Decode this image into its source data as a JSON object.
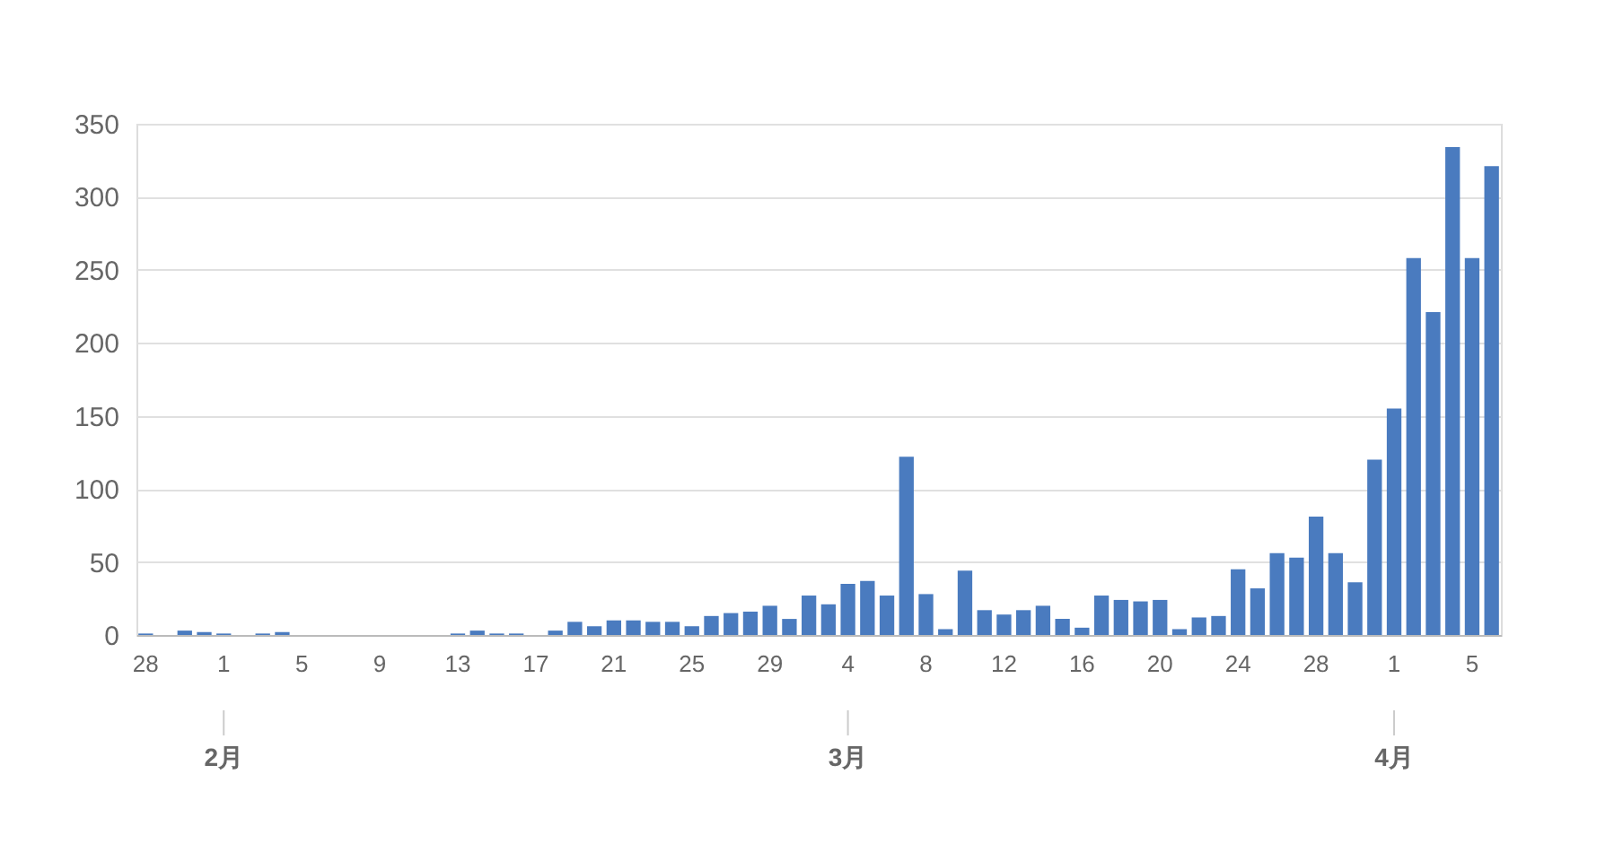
{
  "chart_data": {
    "type": "bar",
    "color": "#4a7bbf",
    "categories": [
      "28",
      null,
      null,
      null,
      "1",
      null,
      null,
      null,
      "5",
      null,
      null,
      null,
      "9",
      null,
      null,
      null,
      "13",
      null,
      null,
      null,
      "17",
      null,
      null,
      null,
      "21",
      null,
      null,
      null,
      "25",
      null,
      null,
      null,
      "29",
      null,
      null,
      null,
      "4",
      null,
      null,
      null,
      "8",
      null,
      null,
      null,
      "12",
      null,
      null,
      null,
      "16",
      null,
      null,
      null,
      "20",
      null,
      null,
      null,
      "24",
      null,
      null,
      null,
      "28",
      null,
      null,
      null,
      "1",
      null,
      null,
      null,
      "5",
      null
    ],
    "values": [
      1,
      0,
      3,
      2,
      1,
      0,
      1,
      2,
      0,
      0,
      0,
      0,
      0,
      0,
      0,
      0,
      1,
      3,
      1,
      1,
      0,
      3,
      9,
      6,
      10,
      10,
      9,
      9,
      6,
      13,
      15,
      16,
      20,
      11,
      27,
      21,
      35,
      37,
      27,
      122,
      28,
      4,
      44,
      17,
      14,
      17,
      20,
      11,
      5,
      27,
      24,
      23,
      24,
      4,
      12,
      13,
      45,
      32,
      56,
      53,
      81,
      56,
      36,
      120,
      155,
      258,
      221,
      334,
      258,
      321
    ],
    "annotations": [
      "2月",
      "3月",
      "4月"
    ],
    "ylim": [
      0,
      350
    ],
    "yticks": [
      0,
      50,
      100,
      150,
      200,
      250,
      300,
      350
    ],
    "grid": "y"
  }
}
